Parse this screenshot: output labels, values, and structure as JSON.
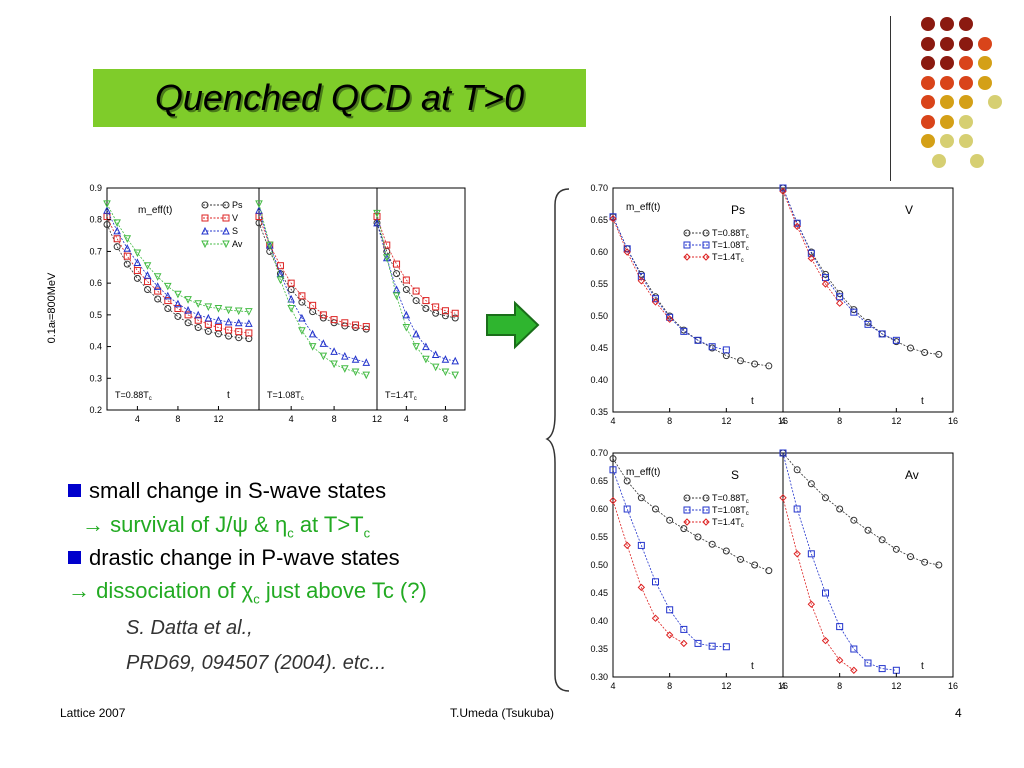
{
  "slide": {
    "title": "Quenched QCD at T>0",
    "footer_left": "Lattice 2007",
    "footer_center": "T.Umeda (Tsukuba)",
    "footer_right": "4",
    "bullets": [
      {
        "text": "small change in S-wave states"
      },
      {
        "prefix": "→",
        "text": "survival of J/ψ  &  η",
        "sub": "c",
        "tail": " at T>T",
        "tail_sub": "c"
      },
      {
        "text": "drastic change in P-wave states"
      },
      {
        "prefix": "→",
        "text": "dissociation of  χ",
        "sub": "c",
        "tail": " just above Tc (?)"
      }
    ],
    "reference": [
      "S. Datta et al.,",
      "PRD69, 094507 (2004).  etc..."
    ],
    "left_ylabel": "0.1a",
    "left_ylabel_sub": "t",
    "left_ylabel_tail": "=800MeV",
    "colors": {
      "title_bg": "#7fcc2a",
      "accent": "#22aa22",
      "bullet": "#0000cc",
      "arrow": "#2fb52f"
    }
  },
  "chart_data": [
    {
      "type": "line",
      "panel": "left",
      "ylabel_text": "m_eff(t)",
      "ylim": [
        0.2,
        0.9
      ],
      "yticks": [
        "0.9",
        "0.8",
        "0.7",
        "0.6",
        "0.5",
        "0.4",
        "0.3",
        "0.2"
      ],
      "legend": [
        "Ps",
        "V",
        "S",
        "Av"
      ],
      "subpanels": [
        {
          "label": "T=0.88T",
          "label_sub": "c",
          "tlabel": "t",
          "xticks": [
            "4",
            "8",
            "12"
          ],
          "xlim": [
            1,
            16
          ],
          "series": [
            {
              "name": "Ps",
              "color": "#333333",
              "x": [
                1,
                2,
                3,
                4,
                5,
                6,
                7,
                8,
                9,
                10,
                11,
                12,
                13,
                14,
                15
              ],
              "y": [
                0.785,
                0.715,
                0.66,
                0.615,
                0.58,
                0.55,
                0.52,
                0.495,
                0.475,
                0.46,
                0.448,
                0.44,
                0.433,
                0.428,
                0.425
              ]
            },
            {
              "name": "V",
              "color": "#dd2222",
              "x": [
                1,
                2,
                3,
                4,
                5,
                6,
                7,
                8,
                9,
                10,
                11,
                12,
                13,
                14,
                15
              ],
              "y": [
                0.81,
                0.74,
                0.685,
                0.64,
                0.605,
                0.575,
                0.545,
                0.52,
                0.5,
                0.483,
                0.47,
                0.46,
                0.452,
                0.447,
                0.443
              ]
            },
            {
              "name": "S",
              "color": "#2233cc",
              "x": [
                1,
                2,
                3,
                4,
                5,
                6,
                7,
                8,
                9,
                10,
                11,
                12,
                13,
                14,
                15
              ],
              "y": [
                0.83,
                0.765,
                0.71,
                0.665,
                0.625,
                0.59,
                0.56,
                0.535,
                0.515,
                0.5,
                0.49,
                0.483,
                0.478,
                0.475,
                0.473
              ]
            },
            {
              "name": "Av",
              "color": "#44bb44",
              "x": [
                1,
                2,
                3,
                4,
                5,
                6,
                7,
                8,
                9,
                10,
                11,
                12,
                13,
                14,
                15
              ],
              "y": [
                0.85,
                0.79,
                0.74,
                0.695,
                0.655,
                0.62,
                0.59,
                0.565,
                0.548,
                0.535,
                0.525,
                0.52,
                0.515,
                0.512,
                0.51
              ]
            }
          ]
        },
        {
          "label": "T=1.08T",
          "label_sub": "c",
          "xticks": [
            "4",
            "8",
            "12"
          ],
          "xlim": [
            1,
            12
          ],
          "series": [
            {
              "name": "Ps",
              "color": "#333333",
              "x": [
                1,
                2,
                3,
                4,
                5,
                6,
                7,
                8,
                9,
                10,
                11
              ],
              "y": [
                0.79,
                0.7,
                0.63,
                0.58,
                0.54,
                0.51,
                0.49,
                0.475,
                0.465,
                0.46,
                0.455
              ]
            },
            {
              "name": "V",
              "color": "#dd2222",
              "x": [
                1,
                2,
                3,
                4,
                5,
                6,
                7,
                8,
                9,
                10,
                11
              ],
              "y": [
                0.81,
                0.72,
                0.655,
                0.6,
                0.56,
                0.53,
                0.5,
                0.485,
                0.475,
                0.468,
                0.463
              ]
            },
            {
              "name": "S",
              "color": "#2233cc",
              "x": [
                1,
                2,
                3,
                4,
                5,
                6,
                7,
                8,
                9,
                10,
                11
              ],
              "y": [
                0.83,
                0.72,
                0.63,
                0.55,
                0.49,
                0.44,
                0.41,
                0.385,
                0.37,
                0.36,
                0.35
              ]
            },
            {
              "name": "Av",
              "color": "#44bb44",
              "x": [
                1,
                2,
                3,
                4,
                5,
                6,
                7,
                8,
                9,
                10,
                11
              ],
              "y": [
                0.85,
                0.72,
                0.61,
                0.52,
                0.45,
                0.4,
                0.37,
                0.345,
                0.33,
                0.32,
                0.31
              ]
            }
          ]
        },
        {
          "label": "T=1.4T",
          "label_sub": "c",
          "xticks": [
            "4",
            "8"
          ],
          "xlim": [
            1,
            10
          ],
          "series": [
            {
              "name": "Ps",
              "color": "#333333",
              "x": [
                1,
                2,
                3,
                4,
                5,
                6,
                7,
                8,
                9
              ],
              "y": [
                0.79,
                0.7,
                0.63,
                0.58,
                0.545,
                0.52,
                0.505,
                0.497,
                0.49
              ]
            },
            {
              "name": "V",
              "color": "#dd2222",
              "x": [
                1,
                2,
                3,
                4,
                5,
                6,
                7,
                8,
                9
              ],
              "y": [
                0.81,
                0.72,
                0.66,
                0.61,
                0.575,
                0.545,
                0.525,
                0.513,
                0.505
              ]
            },
            {
              "name": "S",
              "color": "#2233cc",
              "x": [
                1,
                2,
                3,
                4,
                5,
                6,
                7,
                8,
                9
              ],
              "y": [
                0.79,
                0.68,
                0.58,
                0.5,
                0.44,
                0.4,
                0.375,
                0.36,
                0.355
              ]
            },
            {
              "name": "Av",
              "color": "#44bb44",
              "x": [
                1,
                2,
                3,
                4,
                5,
                6,
                7,
                8,
                9
              ],
              "y": [
                0.82,
                0.68,
                0.56,
                0.46,
                0.4,
                0.36,
                0.335,
                0.32,
                0.31
              ]
            }
          ]
        }
      ]
    },
    {
      "type": "line",
      "panel": "right-top",
      "ylabel_text": "m_eff(t)",
      "ylim": [
        0.35,
        0.7
      ],
      "yticks": [
        "0.70",
        "0.65",
        "0.60",
        "0.55",
        "0.50",
        "0.45",
        "0.40",
        "0.35"
      ],
      "legend": [
        "T=0.88T",
        "T=1.08T",
        "T=1.4T"
      ],
      "legend_sub": "c",
      "subpanels": [
        {
          "name": "Ps",
          "tlabel": "t",
          "xticks": [
            "4",
            "8",
            "12",
            "16"
          ],
          "xlim": [
            4,
            16
          ],
          "series": [
            {
              "name": "T=0.88T",
              "color": "#333333",
              "x": [
                4,
                5,
                6,
                7,
                8,
                9,
                10,
                11,
                12,
                13,
                14,
                15
              ],
              "y": [
                0.655,
                0.605,
                0.565,
                0.53,
                0.5,
                0.478,
                0.462,
                0.45,
                0.438,
                0.43,
                0.425,
                0.422
              ]
            },
            {
              "name": "T=1.08T",
              "color": "#2233cc",
              "x": [
                4,
                5,
                6,
                7,
                8,
                9,
                10,
                11,
                12
              ],
              "y": [
                0.655,
                0.605,
                0.562,
                0.527,
                0.498,
                0.476,
                0.462,
                0.452,
                0.447
              ]
            },
            {
              "name": "T=1.4T",
              "color": "#dd2222",
              "x": [
                4,
                5,
                6,
                7,
                8
              ],
              "y": [
                0.652,
                0.6,
                0.555,
                0.522,
                0.495
              ]
            }
          ]
        },
        {
          "name": "V",
          "tlabel": "t",
          "xticks": [
            "4",
            "8",
            "12",
            "16"
          ],
          "xlim": [
            4,
            16
          ],
          "series": [
            {
              "name": "T=0.88T",
              "color": "#333333",
              "x": [
                4,
                5,
                6,
                7,
                8,
                9,
                10,
                11,
                12,
                13,
                14,
                15
              ],
              "y": [
                0.7,
                0.645,
                0.6,
                0.565,
                0.535,
                0.51,
                0.49,
                0.472,
                0.46,
                0.45,
                0.443,
                0.44
              ]
            },
            {
              "name": "T=1.08T",
              "color": "#2233cc",
              "x": [
                4,
                5,
                6,
                7,
                8,
                9,
                10,
                11,
                12
              ],
              "y": [
                0.7,
                0.645,
                0.598,
                0.56,
                0.53,
                0.506,
                0.487,
                0.472,
                0.462
              ]
            },
            {
              "name": "T=1.4T",
              "color": "#dd2222",
              "x": [
                4,
                5,
                6,
                7,
                8
              ],
              "y": [
                0.695,
                0.64,
                0.59,
                0.55,
                0.52
              ]
            }
          ]
        }
      ]
    },
    {
      "type": "line",
      "panel": "right-bottom",
      "ylabel_text": "m_eff(t)",
      "ylim": [
        0.3,
        0.7
      ],
      "yticks": [
        "0.70",
        "0.65",
        "0.60",
        "0.55",
        "0.50",
        "0.45",
        "0.40",
        "0.35",
        "0.30"
      ],
      "legend": [
        "T=0.88T",
        "T=1.08T",
        "T=1.4T"
      ],
      "legend_sub": "c",
      "subpanels": [
        {
          "name": "S",
          "tlabel": "t",
          "xticks": [
            "4",
            "8",
            "12",
            "16"
          ],
          "xlim": [
            4,
            16
          ],
          "series": [
            {
              "name": "T=0.88T",
              "color": "#333333",
              "x": [
                4,
                5,
                6,
                7,
                8,
                9,
                10,
                11,
                12,
                13,
                14,
                15
              ],
              "y": [
                0.69,
                0.65,
                0.62,
                0.6,
                0.58,
                0.565,
                0.55,
                0.537,
                0.525,
                0.51,
                0.5,
                0.49
              ]
            },
            {
              "name": "T=1.08T",
              "color": "#2233cc",
              "x": [
                4,
                5,
                6,
                7,
                8,
                9,
                10,
                11,
                12
              ],
              "y": [
                0.67,
                0.6,
                0.535,
                0.47,
                0.42,
                0.385,
                0.36,
                0.355,
                0.354
              ]
            },
            {
              "name": "T=1.4T",
              "color": "#dd2222",
              "x": [
                4,
                5,
                6,
                7,
                8,
                9
              ],
              "y": [
                0.615,
                0.535,
                0.46,
                0.405,
                0.375,
                0.36
              ]
            }
          ]
        },
        {
          "name": "Av",
          "tlabel": "t",
          "xticks": [
            "4",
            "8",
            "12",
            "16"
          ],
          "xlim": [
            4,
            16
          ],
          "series": [
            {
              "name": "T=0.88T",
              "color": "#333333",
              "x": [
                4,
                5,
                6,
                7,
                8,
                9,
                10,
                11,
                12,
                13,
                14,
                15
              ],
              "y": [
                0.7,
                0.67,
                0.645,
                0.62,
                0.6,
                0.58,
                0.562,
                0.545,
                0.528,
                0.515,
                0.505,
                0.5
              ]
            },
            {
              "name": "T=1.08T",
              "color": "#2233cc",
              "x": [
                4,
                5,
                6,
                7,
                8,
                9,
                10,
                11,
                12
              ],
              "y": [
                0.7,
                0.6,
                0.52,
                0.45,
                0.39,
                0.35,
                0.325,
                0.315,
                0.312
              ]
            },
            {
              "name": "T=1.4T",
              "color": "#dd2222",
              "x": [
                4,
                5,
                6,
                7,
                8,
                9
              ],
              "y": [
                0.62,
                0.52,
                0.43,
                0.365,
                0.33,
                0.312
              ]
            }
          ]
        }
      ]
    }
  ]
}
